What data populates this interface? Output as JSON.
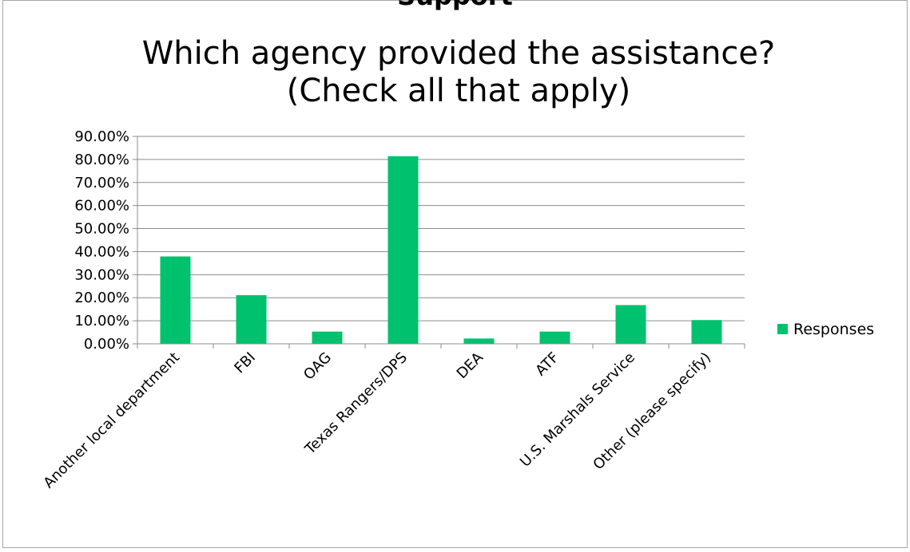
{
  "header": {
    "partial_text": "Support"
  },
  "chart_data": {
    "type": "bar",
    "title_lines": [
      "Which agency provided the assistance?",
      "(Check all that apply)"
    ],
    "categories": [
      "Another local department",
      "FBI",
      "OAG",
      "Texas Rangers/DPS",
      "DEA",
      "ATF",
      "U.S. Marshals Service",
      "Other (please specify)"
    ],
    "series": [
      {
        "name": "Responses",
        "values": [
          0.379,
          0.211,
          0.053,
          0.814,
          0.023,
          0.053,
          0.168,
          0.103
        ],
        "color": "#00c16e"
      }
    ],
    "yticks": [
      "0.00%",
      "10.00%",
      "20.00%",
      "30.00%",
      "40.00%",
      "50.00%",
      "60.00%",
      "70.00%",
      "80.00%",
      "90.00%"
    ],
    "ylim": [
      0,
      0.9
    ],
    "grid": true,
    "legend_position": "right"
  }
}
